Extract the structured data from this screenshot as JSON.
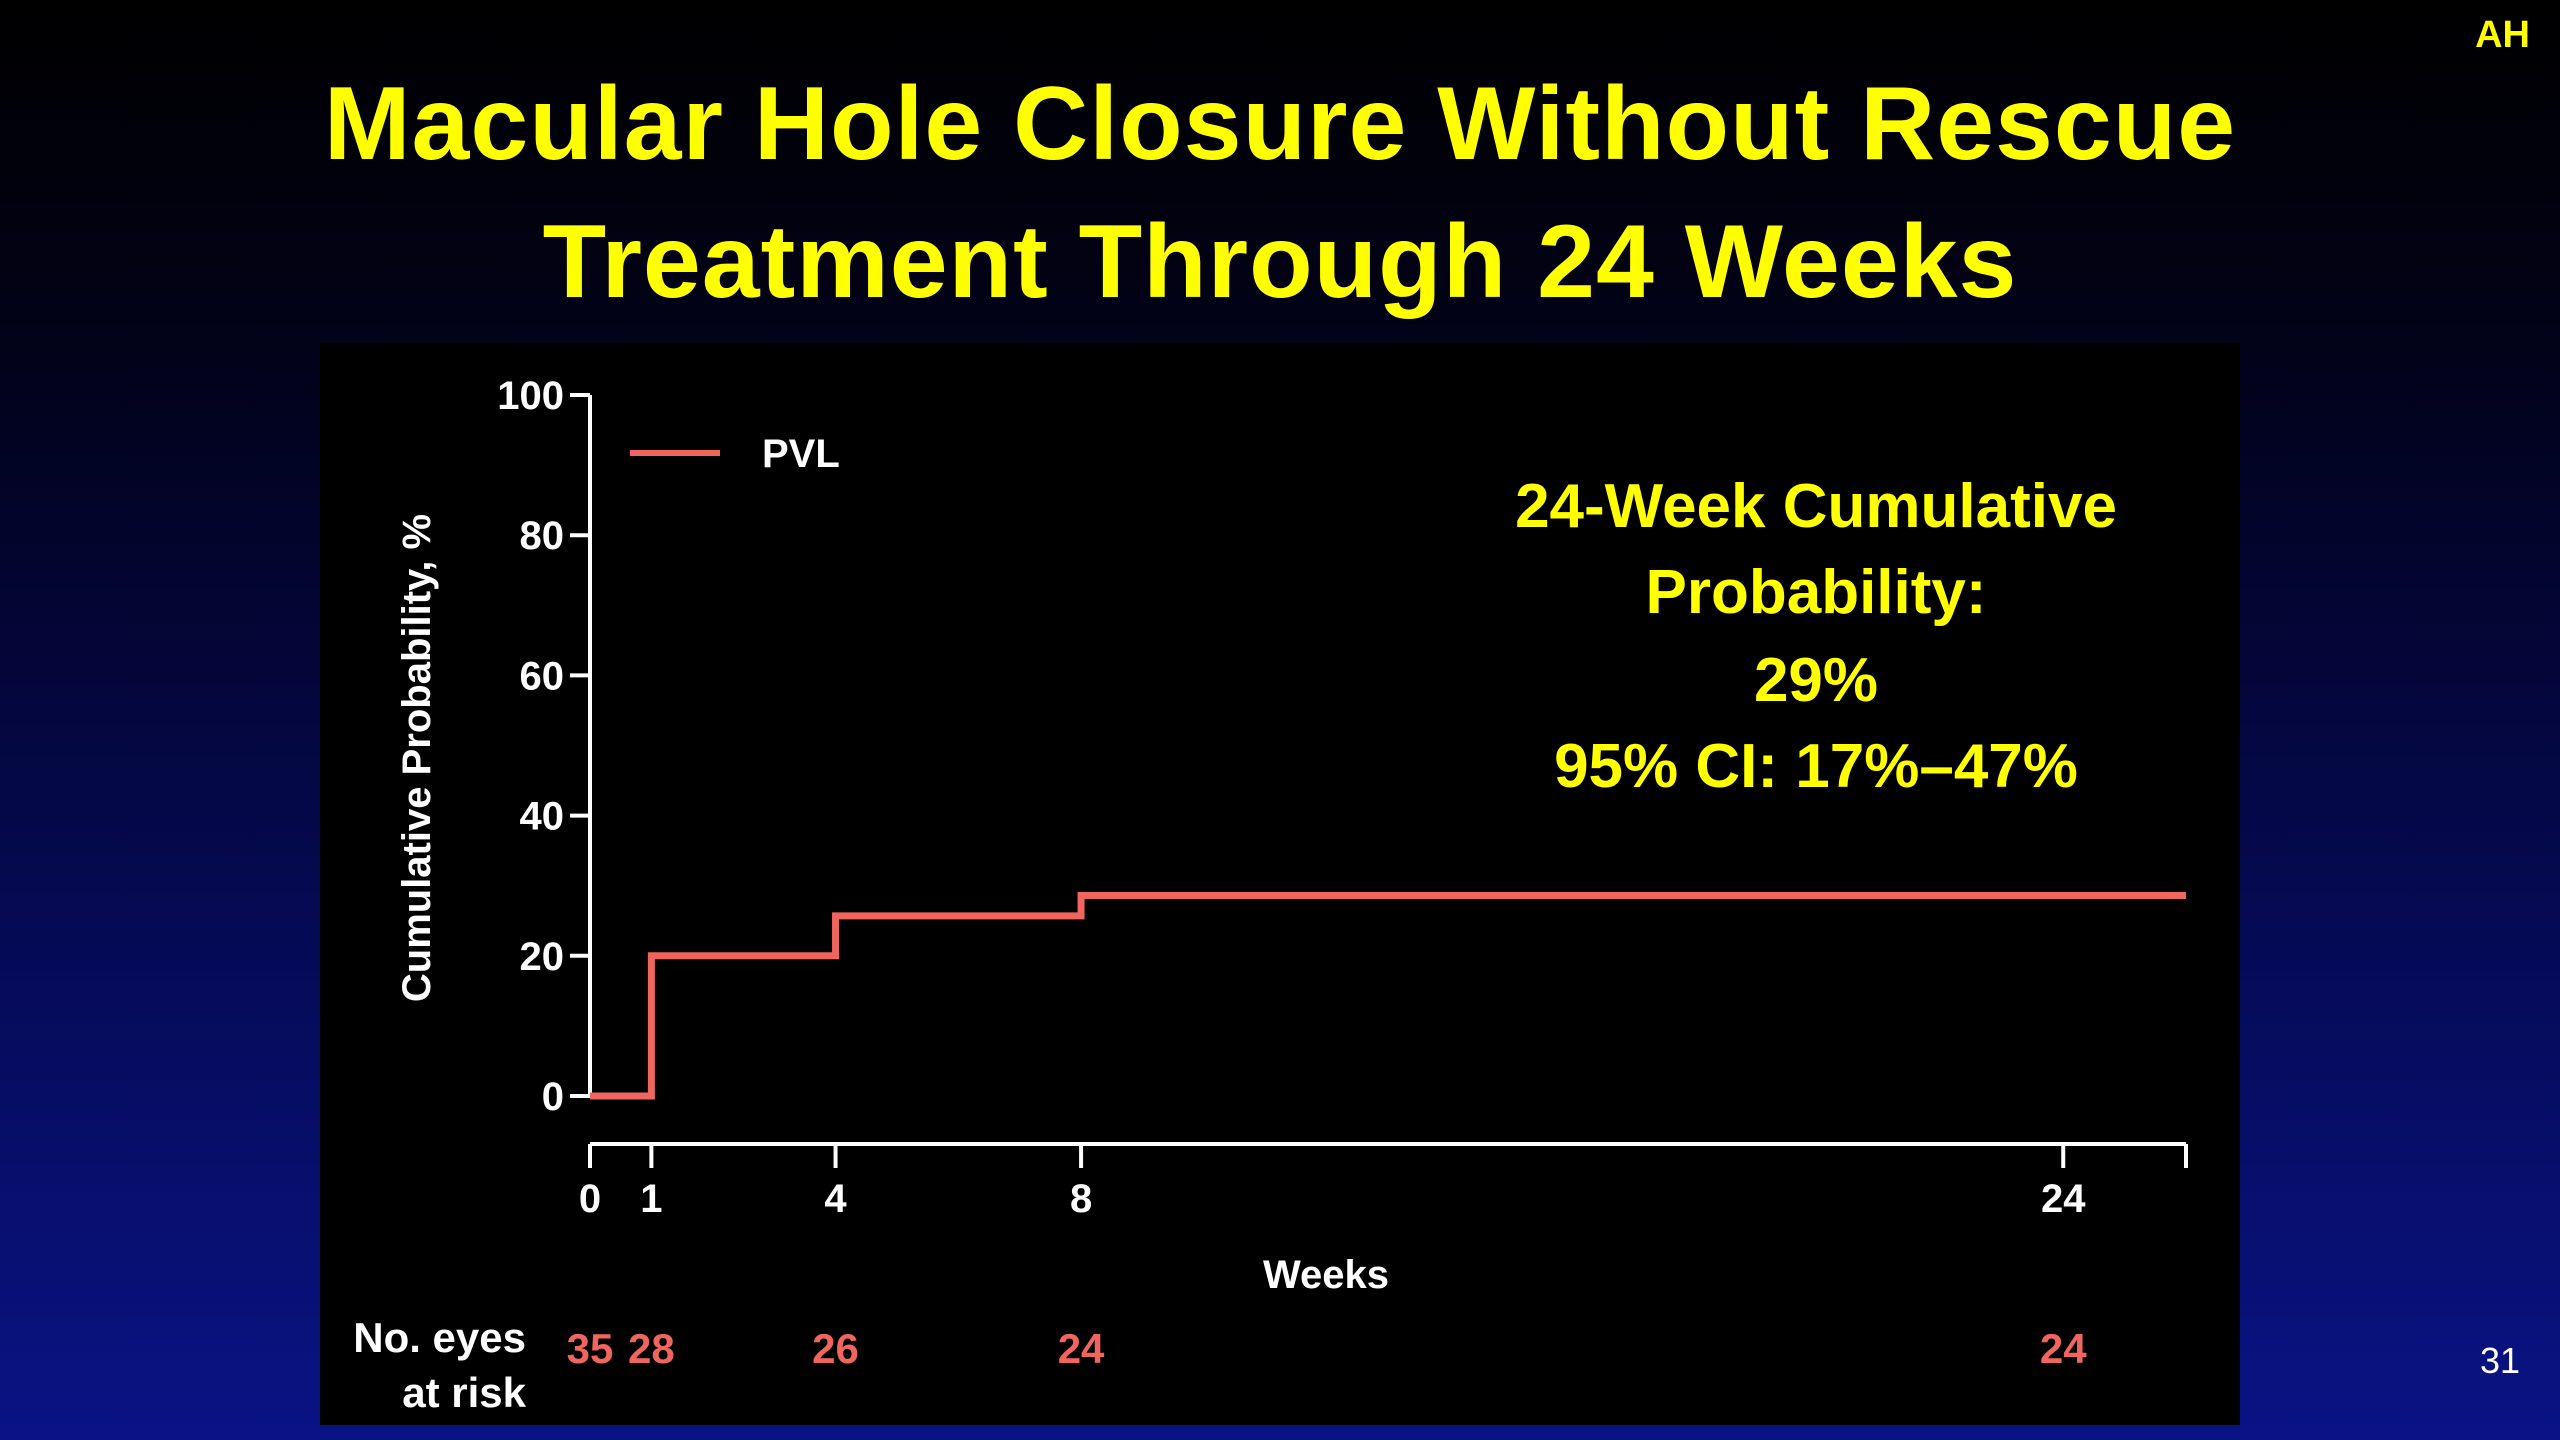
{
  "corner_tag": "AH",
  "title": {
    "line1": "Macular Hole Closure Without Rescue",
    "line2": "Treatment Through 24 Weeks"
  },
  "page_number": "31",
  "colors": {
    "title": "#ffff00",
    "series": "#f0665e",
    "axis": "#ffffff",
    "panel": "#000000"
  },
  "chart_data": {
    "type": "line",
    "step": true,
    "ylabel": "Cumulative Probability, %",
    "xlabel": "Weeks",
    "ylim": [
      0,
      100
    ],
    "xlim": [
      0,
      26
    ],
    "yticks": [
      0,
      20,
      40,
      60,
      80,
      100
    ],
    "xticks": [
      0,
      1,
      4,
      8,
      24
    ],
    "grid": false,
    "legend_position": "top-left",
    "series": [
      {
        "name": "PVL",
        "color": "#f0665e",
        "x": [
          0,
          1,
          4,
          8,
          26
        ],
        "y": [
          0,
          20,
          25.7,
          28.6,
          28.6
        ]
      }
    ],
    "annotation": {
      "lines": [
        "24-Week Cumulative",
        "Probability:",
        "29%",
        "95% CI: 17%–47%"
      ]
    },
    "risk_table": {
      "label_line1": "No. eyes",
      "label_line2": "at risk",
      "x": [
        0,
        1,
        4,
        8,
        24
      ],
      "values": [
        "35",
        "28",
        "26",
        "24",
        "24"
      ]
    }
  }
}
